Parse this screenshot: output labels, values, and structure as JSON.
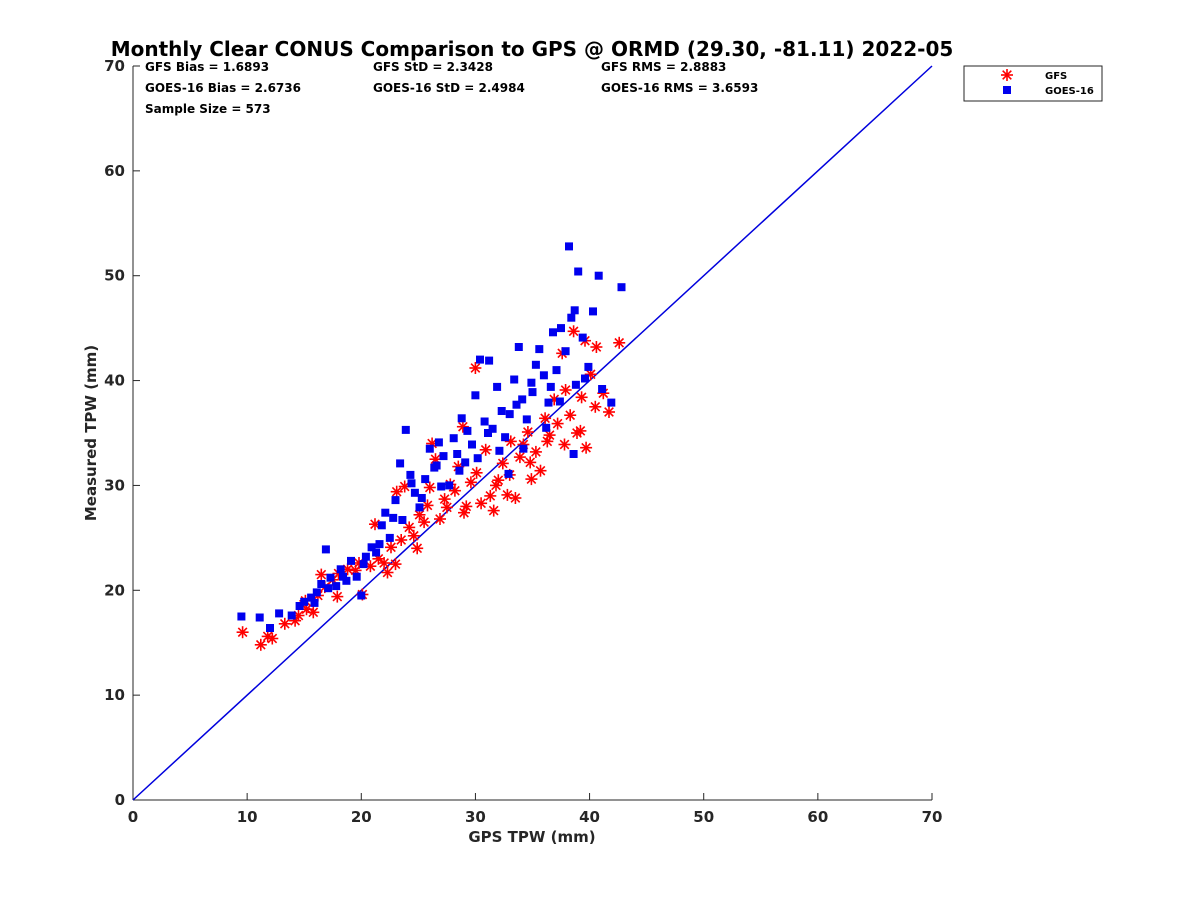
{
  "chart_data": {
    "type": "scatter",
    "title": "Monthly Clear CONUS Comparison to GPS @ ORMD (29.30, -81.11) 2022-05",
    "xlabel": "GPS TPW (mm)",
    "ylabel": "Measured TPW (mm)",
    "xlim": [
      0,
      70
    ],
    "ylim": [
      0,
      70
    ],
    "xticks": [
      0,
      10,
      20,
      30,
      40,
      50,
      60,
      70
    ],
    "yticks": [
      0,
      10,
      20,
      30,
      40,
      50,
      60,
      70
    ],
    "grid": false,
    "legend_position": "top-right",
    "reference_line": {
      "type": "1:1",
      "color": "#0000dd"
    },
    "stats": {
      "gfs_bias": "GFS Bias = 1.6893",
      "gfs_std": "GFS StD = 2.3428",
      "gfs_rms": "GFS RMS = 2.8883",
      "goes_bias": "GOES-16 Bias = 2.6736",
      "goes_std": "GOES-16 StD = 2.4984",
      "goes_rms": "GOES-16 RMS = 3.6593",
      "sample_size": "Sample Size = 573"
    },
    "series": [
      {
        "name": "GFS",
        "marker": "asterisk",
        "color": "#ff0000",
        "points": [
          [
            9.6,
            16.0
          ],
          [
            11.2,
            14.8
          ],
          [
            11.8,
            15.6
          ],
          [
            12.2,
            15.4
          ],
          [
            13.3,
            16.8
          ],
          [
            14.2,
            17.1
          ],
          [
            14.5,
            17.6
          ],
          [
            15.2,
            18.2
          ],
          [
            15.8,
            17.9
          ],
          [
            15.1,
            19.0
          ],
          [
            16.2,
            19.5
          ],
          [
            16.8,
            20.3
          ],
          [
            17.5,
            21.0
          ],
          [
            18.0,
            21.6
          ],
          [
            18.8,
            22.0
          ],
          [
            19.5,
            21.9
          ],
          [
            20.1,
            19.6
          ],
          [
            20.8,
            22.3
          ],
          [
            21.2,
            26.3
          ],
          [
            21.5,
            23.0
          ],
          [
            22.0,
            22.6
          ],
          [
            22.6,
            24.1
          ],
          [
            23.0,
            22.5
          ],
          [
            23.5,
            24.8
          ],
          [
            23.1,
            29.4
          ],
          [
            23.8,
            29.9
          ],
          [
            24.2,
            26.0
          ],
          [
            24.6,
            25.2
          ],
          [
            25.1,
            27.2
          ],
          [
            25.5,
            26.5
          ],
          [
            25.8,
            28.1
          ],
          [
            26.2,
            34.0
          ],
          [
            26.5,
            32.5
          ],
          [
            26.9,
            26.8
          ],
          [
            27.3,
            28.7
          ],
          [
            27.8,
            30.1
          ],
          [
            28.2,
            29.5
          ],
          [
            28.5,
            31.8
          ],
          [
            28.9,
            35.6
          ],
          [
            29.2,
            28.0
          ],
          [
            29.6,
            30.3
          ],
          [
            30.1,
            31.2
          ],
          [
            30.5,
            28.3
          ],
          [
            30.0,
            41.2
          ],
          [
            30.9,
            33.4
          ],
          [
            31.3,
            29.0
          ],
          [
            31.6,
            27.6
          ],
          [
            32.0,
            30.5
          ],
          [
            32.4,
            32.1
          ],
          [
            32.8,
            29.1
          ],
          [
            33.1,
            34.2
          ],
          [
            33.5,
            28.8
          ],
          [
            33.9,
            32.7
          ],
          [
            34.2,
            33.9
          ],
          [
            34.6,
            35.1
          ],
          [
            34.9,
            30.6
          ],
          [
            35.3,
            33.2
          ],
          [
            35.7,
            31.4
          ],
          [
            36.1,
            36.4
          ],
          [
            36.5,
            34.8
          ],
          [
            36.9,
            38.2
          ],
          [
            37.2,
            35.9
          ],
          [
            37.6,
            42.6
          ],
          [
            37.9,
            39.1
          ],
          [
            38.3,
            36.7
          ],
          [
            38.6,
            44.7
          ],
          [
            38.9,
            35.0
          ],
          [
            39.3,
            38.4
          ],
          [
            39.7,
            33.6
          ],
          [
            39.6,
            43.8
          ],
          [
            40.1,
            40.6
          ],
          [
            40.5,
            37.5
          ],
          [
            40.6,
            43.2
          ],
          [
            41.2,
            38.8
          ],
          [
            41.7,
            37.0
          ],
          [
            42.6,
            43.6
          ],
          [
            27.5,
            27.9
          ],
          [
            29.0,
            27.4
          ],
          [
            31.8,
            30.0
          ],
          [
            33.0,
            31.0
          ],
          [
            34.8,
            32.2
          ],
          [
            36.3,
            34.2
          ],
          [
            37.8,
            33.9
          ],
          [
            39.2,
            35.2
          ],
          [
            26.0,
            29.8
          ],
          [
            24.9,
            24.0
          ],
          [
            22.3,
            21.7
          ],
          [
            19.8,
            22.6
          ],
          [
            17.9,
            19.4
          ],
          [
            16.5,
            21.5
          ]
        ]
      },
      {
        "name": "GOES-16",
        "marker": "square",
        "color": "#0000ee",
        "points": [
          [
            9.5,
            17.5
          ],
          [
            11.1,
            17.4
          ],
          [
            12.0,
            16.4
          ],
          [
            12.8,
            17.8
          ],
          [
            13.9,
            17.6
          ],
          [
            14.6,
            18.5
          ],
          [
            15.0,
            18.9
          ],
          [
            15.6,
            19.3
          ],
          [
            16.1,
            19.8
          ],
          [
            16.5,
            20.6
          ],
          [
            16.9,
            23.9
          ],
          [
            17.3,
            21.2
          ],
          [
            17.8,
            20.4
          ],
          [
            18.2,
            22.0
          ],
          [
            18.7,
            20.9
          ],
          [
            19.1,
            22.8
          ],
          [
            19.6,
            21.3
          ],
          [
            20.0,
            19.5
          ],
          [
            20.4,
            23.2
          ],
          [
            20.9,
            24.1
          ],
          [
            21.3,
            23.6
          ],
          [
            21.8,
            26.2
          ],
          [
            22.1,
            27.4
          ],
          [
            22.5,
            25.0
          ],
          [
            23.0,
            28.6
          ],
          [
            23.4,
            32.1
          ],
          [
            23.9,
            35.3
          ],
          [
            24.3,
            31.0
          ],
          [
            24.7,
            29.3
          ],
          [
            25.1,
            27.9
          ],
          [
            25.6,
            30.6
          ],
          [
            26.0,
            33.5
          ],
          [
            26.4,
            31.7
          ],
          [
            26.8,
            34.1
          ],
          [
            27.2,
            32.8
          ],
          [
            27.7,
            30.0
          ],
          [
            28.1,
            34.5
          ],
          [
            28.4,
            33.0
          ],
          [
            28.8,
            36.4
          ],
          [
            29.3,
            35.2
          ],
          [
            29.7,
            33.9
          ],
          [
            30.0,
            38.6
          ],
          [
            30.4,
            42.0
          ],
          [
            30.8,
            36.1
          ],
          [
            31.2,
            41.9
          ],
          [
            31.5,
            35.4
          ],
          [
            31.9,
            39.4
          ],
          [
            32.3,
            37.1
          ],
          [
            32.6,
            34.6
          ],
          [
            33.0,
            36.8
          ],
          [
            33.4,
            40.1
          ],
          [
            33.8,
            43.2
          ],
          [
            34.1,
            38.2
          ],
          [
            34.5,
            36.3
          ],
          [
            34.9,
            39.8
          ],
          [
            35.3,
            41.5
          ],
          [
            35.6,
            43.0
          ],
          [
            36.0,
            40.5
          ],
          [
            36.4,
            37.9
          ],
          [
            36.8,
            44.6
          ],
          [
            37.1,
            41.0
          ],
          [
            37.5,
            45.0
          ],
          [
            37.9,
            42.8
          ],
          [
            38.2,
            52.8
          ],
          [
            38.4,
            46.0
          ],
          [
            38.7,
            46.7
          ],
          [
            39.0,
            50.4
          ],
          [
            39.4,
            44.1
          ],
          [
            39.9,
            41.3
          ],
          [
            40.3,
            46.6
          ],
          [
            40.8,
            50.0
          ],
          [
            41.1,
            39.2
          ],
          [
            41.9,
            37.9
          ],
          [
            42.8,
            48.9
          ],
          [
            38.6,
            33.0
          ],
          [
            36.2,
            35.5
          ],
          [
            34.2,
            33.5
          ],
          [
            32.1,
            33.3
          ],
          [
            30.2,
            32.6
          ],
          [
            28.6,
            31.4
          ],
          [
            27.0,
            29.9
          ],
          [
            25.3,
            28.8
          ],
          [
            23.6,
            26.7
          ],
          [
            21.6,
            24.4
          ],
          [
            20.2,
            22.5
          ],
          [
            18.4,
            21.3
          ],
          [
            17.1,
            20.2
          ],
          [
            15.9,
            18.8
          ],
          [
            33.6,
            37.7
          ],
          [
            35.0,
            38.9
          ],
          [
            36.6,
            39.4
          ],
          [
            31.1,
            35.0
          ],
          [
            29.1,
            32.2
          ],
          [
            37.4,
            38.0
          ],
          [
            38.8,
            39.6
          ],
          [
            39.6,
            40.2
          ],
          [
            26.6,
            31.9
          ],
          [
            24.4,
            30.2
          ],
          [
            22.8,
            26.9
          ],
          [
            32.9,
            31.1
          ]
        ]
      }
    ]
  }
}
